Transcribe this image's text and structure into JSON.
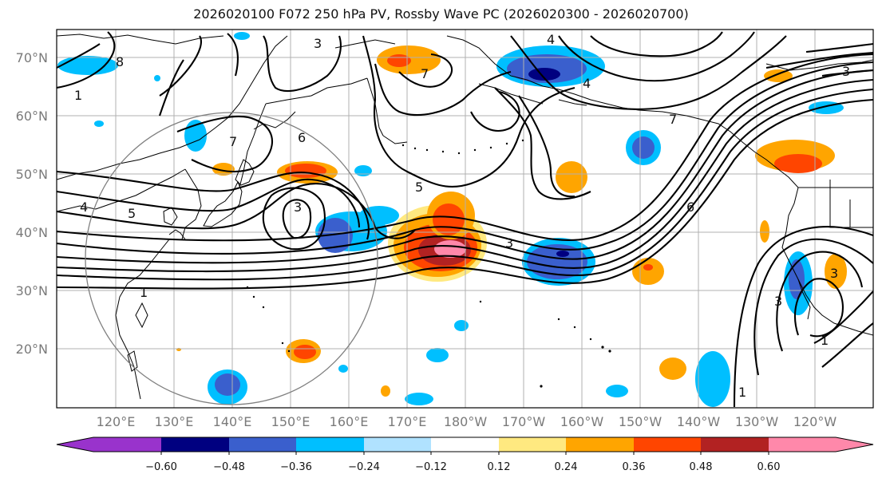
{
  "title": "2026020100 F072 250 hPa PV, Rossby Wave PC (2026020300 - 2026020700)",
  "lat_labels": [
    "70°N",
    "60°N",
    "50°N",
    "40°N",
    "30°N",
    "20°N"
  ],
  "lon_labels": [
    "120°E",
    "130°E",
    "140°E",
    "150°E",
    "160°E",
    "170°E",
    "180°W",
    "170°W",
    "160°W",
    "150°W",
    "140°W",
    "130°W",
    "120°W"
  ],
  "contour_labels": [
    "8",
    "1",
    "3",
    "4",
    "4",
    "7",
    "7",
    "6",
    "7",
    "4",
    "5",
    "3",
    "5",
    "3",
    "1",
    "6",
    "3",
    "1",
    "1",
    "3",
    "3"
  ],
  "colorbar": {
    "ticks": [
      "−0.60",
      "−0.48",
      "−0.36",
      "−0.24",
      "−0.12",
      "0.12",
      "0.24",
      "0.36",
      "0.48",
      "0.60"
    ],
    "colors": [
      "#9933cc",
      "#000080",
      "#3a5fcd",
      "#00bfff",
      "#b0e2ff",
      "#ffffff",
      "#ffe980",
      "#ffa500",
      "#ff4500",
      "#b22222",
      "#ff88aa"
    ]
  }
}
